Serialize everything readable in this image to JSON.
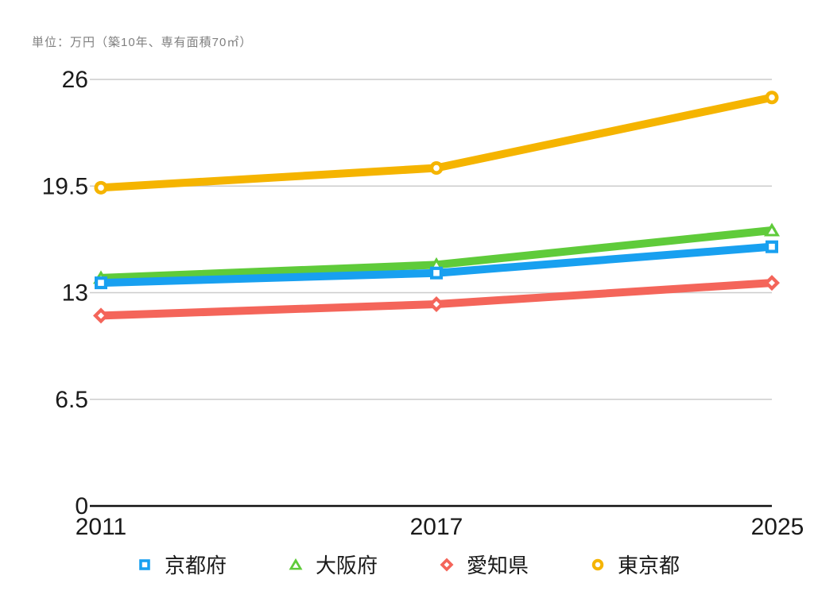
{
  "unit_label": "単位：万円（築10年、専有面積70㎡）",
  "colors": {
    "background": "#ffffff",
    "grid": "#cccccc",
    "axis": "#111111",
    "tick_text": "#1a1a1a",
    "title_text": "#808080",
    "kyoto_blue": "#18A0F0",
    "osaka_green": "#5FCB3A",
    "aichi_red": "#F4655A",
    "tokyo_yellow": "#F5B400"
  },
  "chart_data": {
    "type": "line",
    "title": "単位：万円（築10年、専有面積70㎡）",
    "categories": [
      "2011",
      "2017",
      "2025"
    ],
    "series": [
      {
        "name": "京都府",
        "marker": "square",
        "color": "#18A0F0",
        "values": [
          13.6,
          14.2,
          15.8
        ]
      },
      {
        "name": "大阪府",
        "marker": "triangle",
        "color": "#5FCB3A",
        "values": [
          13.9,
          14.7,
          16.8
        ]
      },
      {
        "name": "愛知県",
        "marker": "diamond",
        "color": "#F4655A",
        "values": [
          11.6,
          12.3,
          13.6
        ]
      },
      {
        "name": "東京都",
        "marker": "circle",
        "color": "#F5B400",
        "values": [
          19.4,
          20.6,
          24.9
        ]
      }
    ],
    "xlabel": "",
    "ylabel": "",
    "ylim": [
      0,
      26
    ],
    "yticks": [
      0,
      6.5,
      13,
      19.5,
      26
    ],
    "grid": true,
    "legend_position": "bottom"
  }
}
